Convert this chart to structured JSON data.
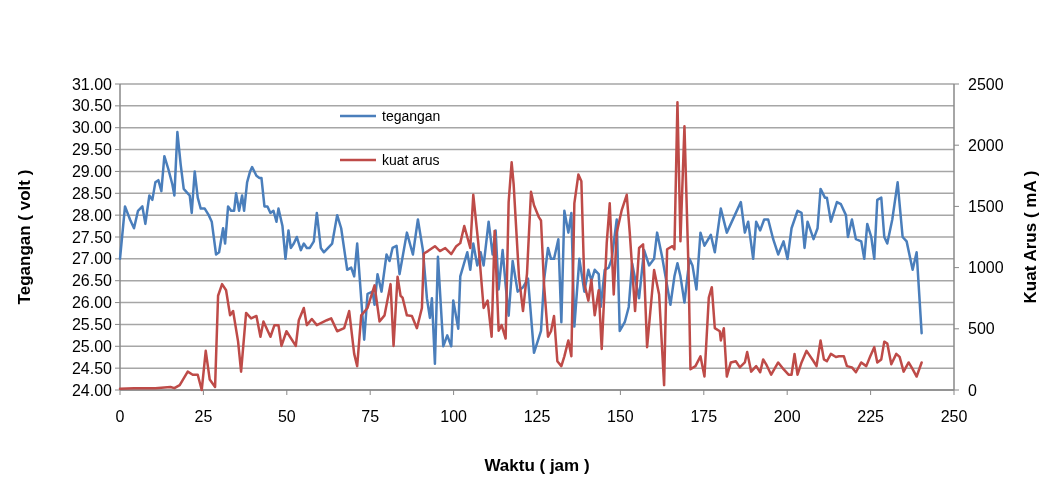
{
  "chart_data": {
    "type": "line",
    "xlabel": "Waktu ( jam )",
    "ylabel": "Tegangan ( volt )",
    "y2label": "Kuat Arus ( mA )",
    "xlim": [
      0,
      250
    ],
    "xticks": [
      0,
      25,
      50,
      75,
      100,
      125,
      150,
      175,
      200,
      225,
      250
    ],
    "ylim": [
      24,
      31
    ],
    "yticks": [
      {
        "value": 24,
        "label": "24.00"
      },
      {
        "value": 24.5,
        "label": "24.50"
      },
      {
        "value": 25,
        "label": "25.00"
      },
      {
        "value": 25.5,
        "label": "25.50"
      },
      {
        "value": 26,
        "label": "26.00"
      },
      {
        "value": 26.5,
        "label": "26.50"
      },
      {
        "value": 27,
        "label": "27.00"
      },
      {
        "value": 27.5,
        "label": "27.50"
      },
      {
        "value": 28,
        "label": "28.00"
      },
      {
        "value": 28.5,
        "label": "28.50"
      },
      {
        "value": 29,
        "label": "29.00"
      },
      {
        "value": 29.5,
        "label": "29.50"
      },
      {
        "value": 30,
        "label": "30.00"
      },
      {
        "value": 30.5,
        "label": "30.50"
      },
      {
        "value": 31,
        "label": "31.00"
      }
    ],
    "y2lim": [
      0,
      2500
    ],
    "y2ticks": [
      0,
      500,
      1000,
      1500,
      2000,
      2500
    ],
    "grid": "y",
    "legend": "top",
    "marker": "none",
    "line_style": "solid",
    "series": [
      {
        "name": "tegangan",
        "color": "#4a7ebb",
        "x": [
          0,
          1.5,
          3,
          4.2,
          5.4,
          6.7,
          7.6,
          8.8,
          9.7,
          10.6,
          11.5,
          12.4,
          13.3,
          14.5,
          15.7,
          16.3,
          17.2,
          18.2,
          19.1,
          20.3,
          20.9,
          21.5,
          22.4,
          23.3,
          24.2,
          25.4,
          26.6,
          27.5,
          28.8,
          29.7,
          30.9,
          31.5,
          32.4,
          33.3,
          34.2,
          34.8,
          35.7,
          36.6,
          37.2,
          38.1,
          39,
          39.6,
          40.9,
          41.8,
          42.4,
          43.3,
          44.2,
          45.1,
          46,
          46.9,
          47.5,
          48.7,
          49.6,
          50.5,
          51.2,
          52.1,
          53,
          54.2,
          55.1,
          56,
          56.9,
          58.1,
          59,
          60.2,
          61.1,
          63.6,
          65.1,
          66.3,
          68.1,
          69.3,
          70.2,
          71.1,
          73.2,
          74.2,
          75.7,
          76.3,
          77.2,
          78.4,
          79.9,
          80.8,
          81.7,
          82.9,
          83.8,
          86,
          87.8,
          89.3,
          90.8,
          92,
          92.9,
          93.5,
          94.4,
          95.3,
          96.9,
          98.1,
          99.3,
          99.9,
          101.4,
          102,
          104.1,
          105,
          105.9,
          107.1,
          108.1,
          109,
          110.5,
          111.7,
          112.6,
          113.5,
          114.7,
          115.6,
          116.5,
          117.7,
          119.2,
          120.8,
          122.3,
          124.1,
          126.2,
          127.1,
          128.3,
          129.2,
          130.1,
          131.4,
          132.3,
          133.2,
          134.4,
          135.3,
          136.2,
          137.7,
          139.2,
          140.4,
          141.3,
          142.3,
          143.5,
          144.1,
          145.3,
          146.5,
          147.4,
          148.9,
          149.8,
          151.3,
          152.5,
          153.5,
          154.4,
          155.6,
          157.1,
          158.6,
          160.1,
          161,
          162.5,
          163.4,
          165,
          166.2,
          167.1,
          168,
          169.2,
          170.7,
          171.6,
          172.8,
          174,
          175.2,
          177.1,
          178.3,
          180.1,
          181.9,
          184.3,
          186.1,
          187.3,
          188.3,
          189.8,
          190.7,
          191.9,
          193.1,
          194.3,
          195.8,
          197.3,
          198.9,
          200.1,
          201.3,
          203.1,
          204.3,
          205.2,
          206.1,
          207.9,
          209.1,
          210,
          211.3,
          211.9,
          213.1,
          214.9,
          216.1,
          217.6,
          218.2,
          219.4,
          220.6,
          222.2,
          223.1,
          224,
          225.2,
          226.1,
          227,
          228.2,
          229.1,
          230,
          231.5,
          233.1,
          234.6,
          235.8,
          237.6,
          238.8,
          240.3
        ],
        "values": [
          27,
          28.2,
          27.9,
          27.7,
          28.1,
          28.2,
          27.8,
          28.45,
          28.35,
          28.75,
          28.8,
          28.55,
          29.35,
          29.05,
          28.7,
          28.45,
          29.9,
          29.15,
          28.6,
          28.5,
          28.45,
          28.05,
          29,
          28.4,
          28.15,
          28.15,
          28,
          27.85,
          27.1,
          27.15,
          27.7,
          27.35,
          28.2,
          28.1,
          28.1,
          28.5,
          28.1,
          28.45,
          28.1,
          28.75,
          29,
          29.1,
          28.9,
          28.85,
          28.85,
          28.2,
          28.2,
          28.05,
          28.1,
          27.85,
          28.15,
          27.75,
          27,
          27.65,
          27.25,
          27.35,
          27.5,
          27.2,
          27.35,
          27.25,
          27.25,
          27.4,
          28.05,
          27.25,
          27.15,
          27.35,
          28,
          27.7,
          26.75,
          26.8,
          26.6,
          27.35,
          25.15,
          26.2,
          26.25,
          25.95,
          26.65,
          26.25,
          27.1,
          26.95,
          27.25,
          27.3,
          26.65,
          27.6,
          27.1,
          27.9,
          27.2,
          26.1,
          25.65,
          26.1,
          24.6,
          27.05,
          25,
          25.25,
          25,
          26.05,
          25.4,
          26.6,
          27.15,
          26.75,
          27.35,
          26.85,
          27.15,
          26.85,
          27.85,
          27.1,
          27.65,
          26.3,
          27.2,
          26.4,
          25.7,
          26.95,
          26.25,
          26.35,
          26.55,
          24.85,
          25.35,
          26.5,
          27.25,
          27,
          27,
          27.45,
          25.55,
          28.1,
          27.6,
          28.05,
          25.45,
          27,
          26.25,
          26.75,
          26.5,
          26.75,
          26.65,
          25.9,
          26.75,
          26.8,
          27,
          27.9,
          25.35,
          25.55,
          25.9,
          26.9,
          26.55,
          26.1,
          27.2,
          26.85,
          27,
          27.6,
          27.05,
          26.65,
          25.95,
          26.6,
          26.9,
          26.6,
          26,
          27,
          26.85,
          26.3,
          27.6,
          27.3,
          27.55,
          27.15,
          28.15,
          27.6,
          28,
          28.3,
          27.6,
          27.85,
          27,
          27.85,
          27.65,
          27.9,
          27.9,
          27.45,
          27.1,
          27.4,
          27,
          27.7,
          28.1,
          28.05,
          27.25,
          27.85,
          27.45,
          27.7,
          28.6,
          28.4,
          28.4,
          27.85,
          28.3,
          28.25,
          28,
          27.5,
          27.9,
          27.45,
          27.4,
          27,
          27.8,
          27.5,
          27,
          28.35,
          28.4,
          27.5,
          27.35,
          27.9,
          28.75,
          27.5,
          27.4,
          26.75,
          27.15,
          25.3
        ]
      },
      {
        "name": "kuat arus",
        "color": "#be4b48",
        "axis": "y2",
        "x": [
          0,
          4.2,
          10.6,
          15.1,
          16.3,
          17.9,
          20.3,
          21.8,
          23.3,
          24.5,
          25.7,
          26.9,
          28.5,
          29.4,
          30.6,
          31.8,
          33,
          33.9,
          35.4,
          36.3,
          37.8,
          39.3,
          40.9,
          42.1,
          43,
          45.1,
          46.3,
          47.5,
          48.4,
          49.9,
          52.7,
          53.6,
          55.1,
          56,
          57.5,
          59,
          62,
          63.3,
          65.1,
          67.2,
          68.7,
          70.2,
          71.1,
          72.3,
          74.2,
          76.3,
          77.8,
          79.3,
          81.1,
          82,
          83.2,
          84.1,
          84.7,
          86,
          87.5,
          89,
          90.5,
          91.1,
          92.3,
          94.4,
          95.9,
          97.5,
          99.3,
          100.8,
          102,
          103.2,
          105,
          105.9,
          107.4,
          109,
          110.2,
          111.4,
          112.3,
          113.5,
          114.4,
          115.6,
          116.5,
          117.4,
          118,
          119.6,
          120.8,
          122,
          123.2,
          124.1,
          125.6,
          126.2,
          127.1,
          128.3,
          129.2,
          130.1,
          131.1,
          132.3,
          133.2,
          134.4,
          135.3,
          136.2,
          137.4,
          138.3,
          139.2,
          140.4,
          141.3,
          142.3,
          143.5,
          144.4,
          145.9,
          146.8,
          148,
          148.9,
          150.4,
          151.9,
          152.8,
          154.4,
          155.6,
          156.8,
          158,
          160.1,
          161.6,
          163.1,
          164,
          165.6,
          166.2,
          167.1,
          168,
          169.2,
          170.4,
          171,
          172.5,
          174,
          175.2,
          176.5,
          177.4,
          178.3,
          179.8,
          180.1,
          181,
          181.9,
          183.1,
          184.6,
          185.8,
          187.3,
          188,
          189.2,
          190.7,
          191.9,
          192.8,
          193.7,
          195.2,
          197.3,
          198.9,
          200.4,
          201.3,
          202.2,
          203.1,
          204.3,
          205.8,
          207.9,
          208.8,
          210,
          211,
          211.9,
          213.1,
          214.6,
          215.5,
          217,
          217.9,
          219.4,
          220.6,
          222.2,
          223.7,
          224.9,
          226.1,
          227,
          228.2,
          229.1,
          230,
          231.2,
          232.7,
          233.7,
          234.9,
          236.4,
          237.6,
          238.8,
          240.3
        ],
        "values": [
          10,
          15,
          15,
          25,
          15,
          40,
          150,
          125,
          125,
          0,
          320,
          85,
          25,
          770,
          865,
          815,
          610,
          645,
          395,
          150,
          630,
          585,
          605,
          435,
          560,
          435,
          530,
          530,
          360,
          480,
          360,
          570,
          670,
          530,
          580,
          530,
          570,
          585,
          480,
          505,
          645,
          295,
          195,
          610,
          670,
          855,
          560,
          610,
          865,
          360,
          925,
          770,
          755,
          610,
          605,
          505,
          670,
          1115,
          1135,
          1175,
          1135,
          1160,
          1110,
          1175,
          1200,
          1340,
          1160,
          1595,
          1200,
          670,
          730,
          435,
          1300,
          485,
          530,
          420,
          1535,
          1860,
          1680,
          925,
          645,
          950,
          1620,
          1510,
          1410,
          1385,
          865,
          435,
          480,
          605,
          235,
          195,
          275,
          405,
          275,
          1525,
          1760,
          1705,
          865,
          730,
          900,
          610,
          815,
          335,
          1200,
          1525,
          780,
          1285,
          1470,
          1595,
          1285,
          645,
          1160,
          1190,
          350,
          980,
          780,
          40,
          1150,
          1175,
          1150,
          2350,
          1215,
          2155,
          1005,
          170,
          195,
          275,
          110,
          755,
          840,
          505,
          480,
          405,
          505,
          110,
          225,
          235,
          185,
          225,
          310,
          150,
          195,
          145,
          250,
          210,
          125,
          225,
          170,
          125,
          125,
          295,
          125,
          225,
          320,
          235,
          195,
          405,
          250,
          235,
          295,
          270,
          275,
          275,
          195,
          185,
          145,
          225,
          195,
          275,
          350,
          225,
          250,
          395,
          380,
          210,
          295,
          270,
          150,
          225,
          170,
          110,
          225
        ]
      }
    ]
  }
}
